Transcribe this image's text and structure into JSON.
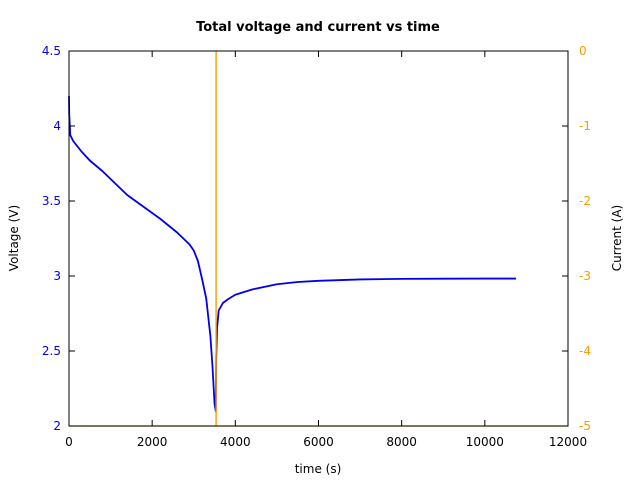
{
  "colors": {
    "voltage": "#0000ee",
    "current": "#f0a000",
    "axes": "#000000",
    "background": "#ffffff"
  },
  "chart_data": {
    "type": "line",
    "title": "Total voltage and current vs time",
    "xlabel": "time (s)",
    "ylabel": "Voltage (V)",
    "y2label": "Current (A)",
    "xlim": [
      0,
      12000
    ],
    "ylim": [
      2,
      4.5
    ],
    "y2lim": [
      -5,
      0
    ],
    "grid": false,
    "legend": "none",
    "x_ticks": [
      "0",
      "2000",
      "4000",
      "6000",
      "8000",
      "10000",
      "12000"
    ],
    "y_ticks": [
      "2",
      "2.5",
      "3",
      "3.5",
      "4",
      "4.5"
    ],
    "y2_ticks": [
      "-5",
      "-4",
      "-3",
      "-2",
      "-1",
      "0"
    ],
    "series": [
      {
        "axis": "left",
        "color": "#0000ee",
        "x": [
          0,
          5,
          30,
          100,
          300,
          500,
          800,
          1100,
          1400,
          1800,
          2200,
          2600,
          2900,
          3000,
          3100,
          3200,
          3300,
          3400,
          3450,
          3500,
          3530,
          3540,
          3560,
          3600,
          3700,
          3850,
          4000,
          4400,
          5000,
          5500,
          6000,
          7000,
          8000,
          9000,
          10000,
          10750
        ],
        "y": [
          4.2,
          4.08,
          3.94,
          3.9,
          3.83,
          3.77,
          3.7,
          3.62,
          3.54,
          3.46,
          3.38,
          3.29,
          3.21,
          3.17,
          3.1,
          2.98,
          2.85,
          2.6,
          2.4,
          2.15,
          2.1,
          2.45,
          2.65,
          2.77,
          2.82,
          2.85,
          2.875,
          2.91,
          2.945,
          2.96,
          2.968,
          2.977,
          2.981,
          2.982,
          2.983,
          2.983
        ]
      },
      {
        "axis": "right",
        "color": "#f0a000",
        "x": [
          0,
          3535,
          3535,
          3540,
          3540,
          12000
        ],
        "y": [
          -5,
          -5,
          0,
          0,
          -5,
          -5
        ]
      }
    ]
  }
}
